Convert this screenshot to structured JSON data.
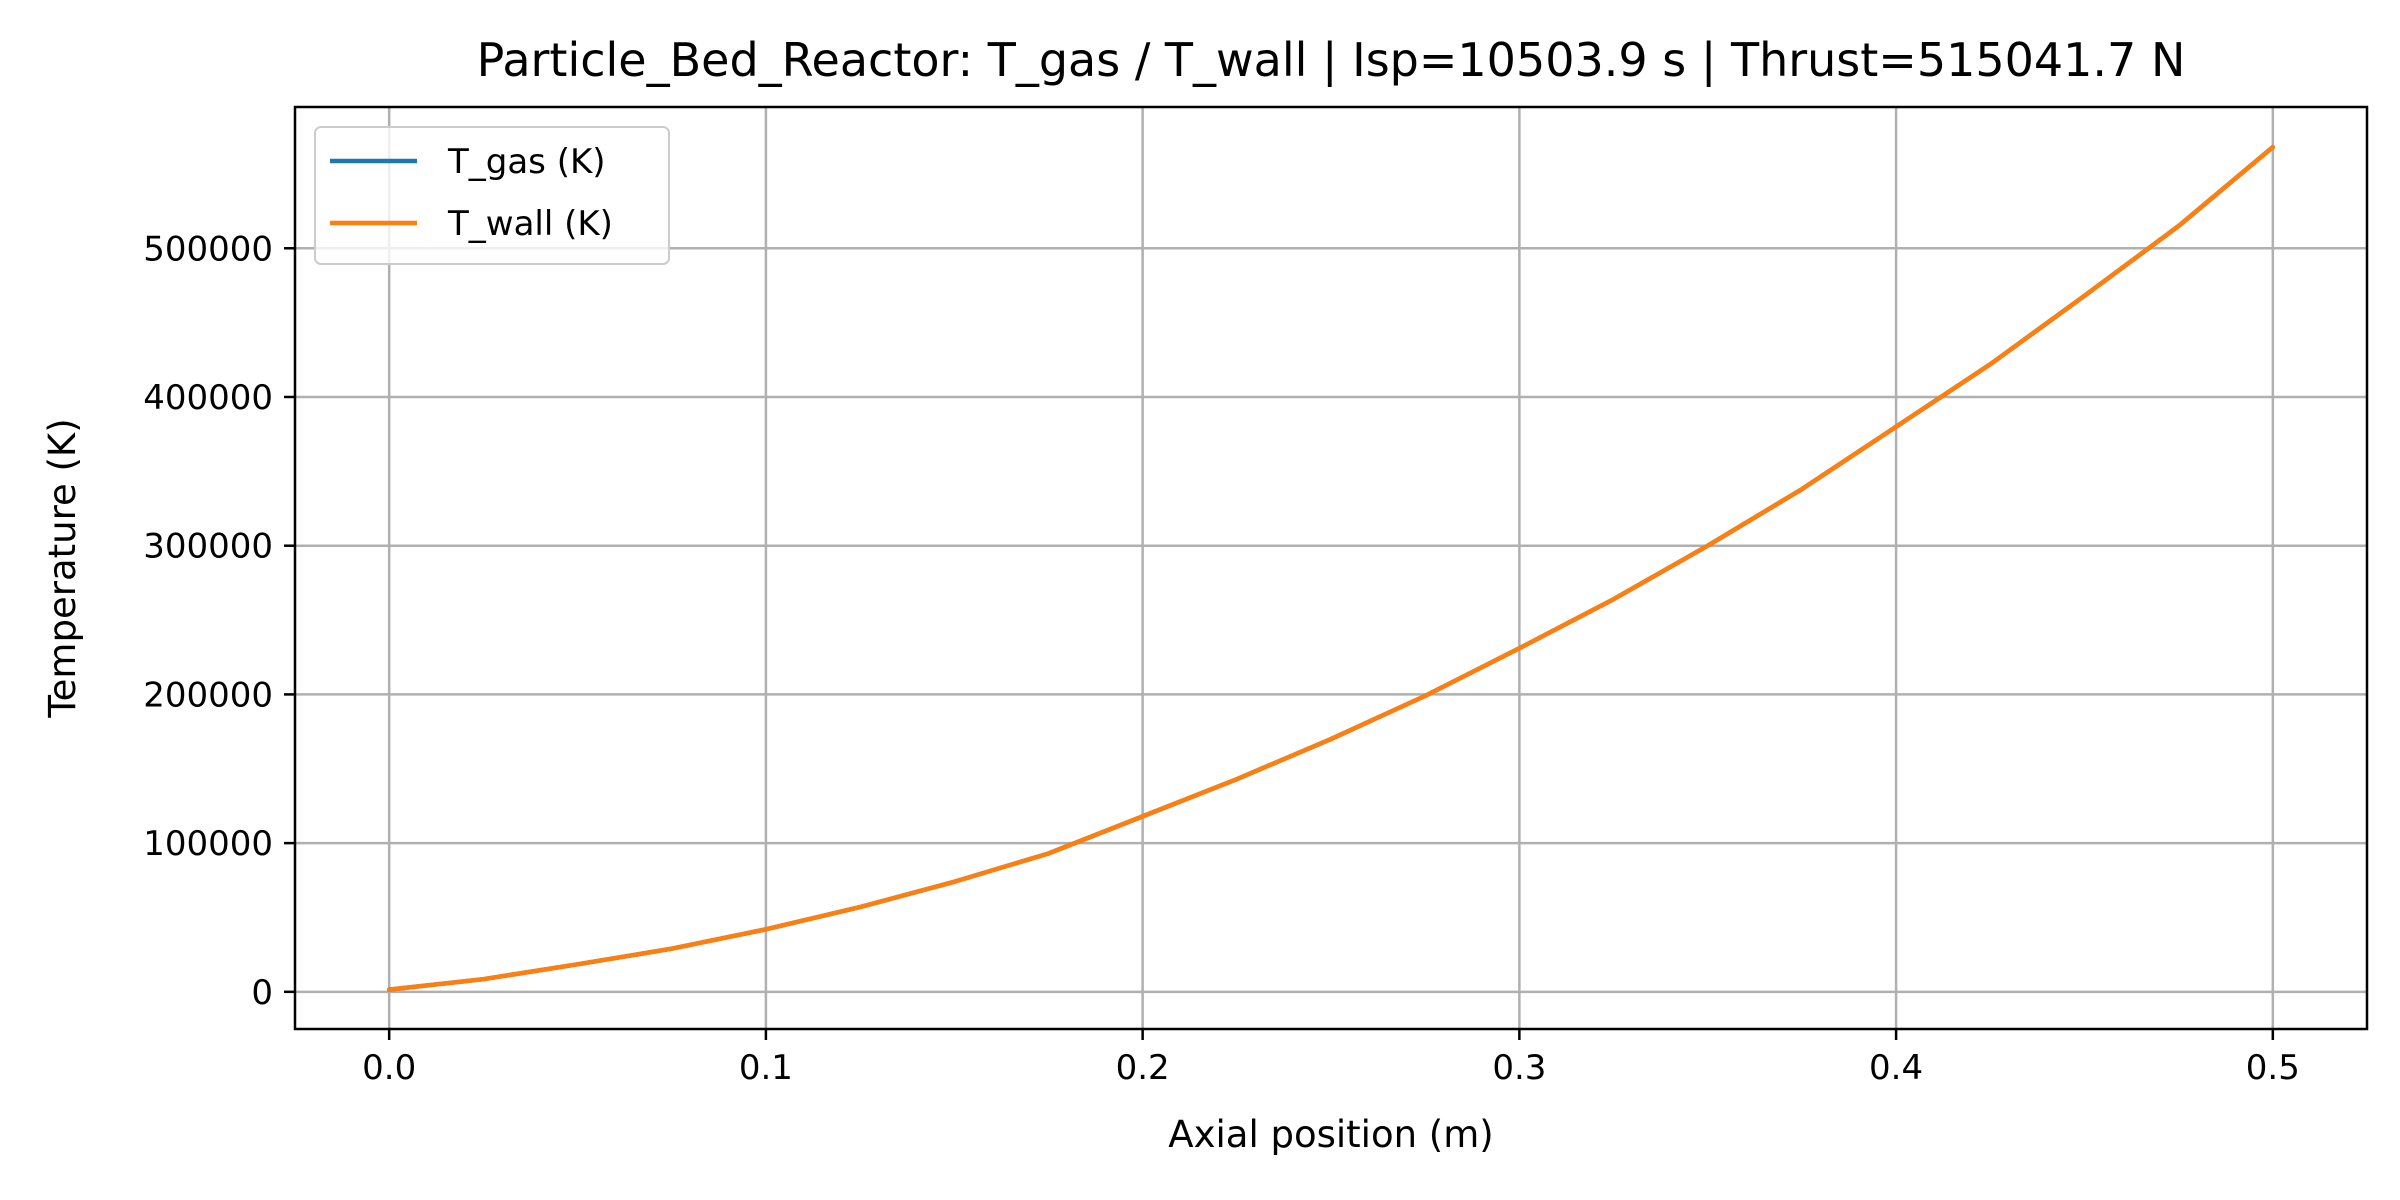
{
  "chart_data": {
    "type": "line",
    "title": "Particle_Bed_Reactor: T_gas / T_wall | Isp=10503.9 s | Thrust=515041.7 N",
    "xlabel": "Axial position (m)",
    "ylabel": "Temperature (K)",
    "xlim": [
      -0.025,
      0.525
    ],
    "ylim": [
      -25000,
      595000
    ],
    "x_ticks": [
      0.0,
      0.1,
      0.2,
      0.3,
      0.4,
      0.5
    ],
    "x_tick_labels": [
      "0.0",
      "0.1",
      "0.2",
      "0.3",
      "0.4",
      "0.5"
    ],
    "y_ticks": [
      0,
      100000,
      200000,
      300000,
      400000,
      500000
    ],
    "y_tick_labels": [
      "0",
      "100000",
      "200000",
      "300000",
      "400000",
      "500000"
    ],
    "grid": true,
    "legend_position": "top-left",
    "x": [
      0.0,
      0.025,
      0.05,
      0.075,
      0.1,
      0.125,
      0.15,
      0.175,
      0.2,
      0.225,
      0.25,
      0.275,
      0.3,
      0.325,
      0.35,
      0.375,
      0.4,
      0.425,
      0.45,
      0.475,
      0.5
    ],
    "series": [
      {
        "name": "T_gas (K)",
        "color": "#1f77b4",
        "values": [
          1500,
          8500,
          18500,
          29000,
          42000,
          57000,
          74000,
          93000,
          118000,
          143000,
          170000,
          199000,
          231000,
          264000,
          300000,
          338000,
          380000,
          422000,
          468000,
          515000,
          568000
        ]
      },
      {
        "name": "T_wall (K)",
        "color": "#ff7f0e",
        "values": [
          1500,
          8500,
          18500,
          29000,
          42000,
          57000,
          74000,
          93000,
          118000,
          143000,
          170000,
          199000,
          231000,
          264000,
          300000,
          338000,
          380000,
          422000,
          468000,
          515000,
          568000
        ]
      }
    ]
  }
}
